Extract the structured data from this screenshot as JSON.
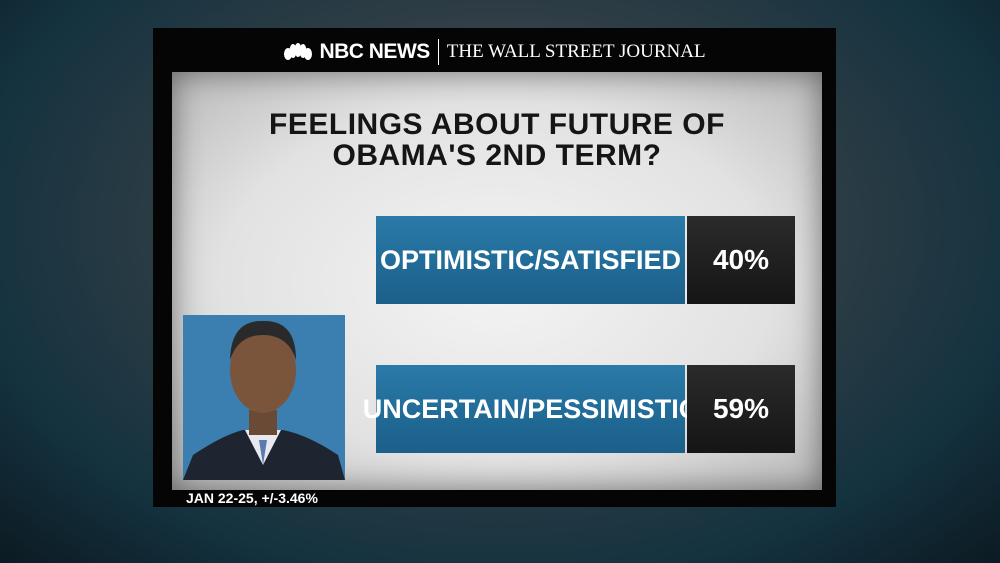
{
  "header": {
    "network": "NBC NEWS",
    "partner": "THE WALL STREET JOURNAL"
  },
  "title": {
    "lines": [
      "FEELINGS ABOUT FUTURE OF",
      "OBAMA'S 2ND TERM?"
    ]
  },
  "results": [
    {
      "label": "OPTIMISTIC/SATISFIED",
      "value": "40%"
    },
    {
      "label": "UNCERTAIN/PESSIMISTIC",
      "value": "59%"
    }
  ],
  "footer": "JAN 22-25, +/-3.46%"
}
